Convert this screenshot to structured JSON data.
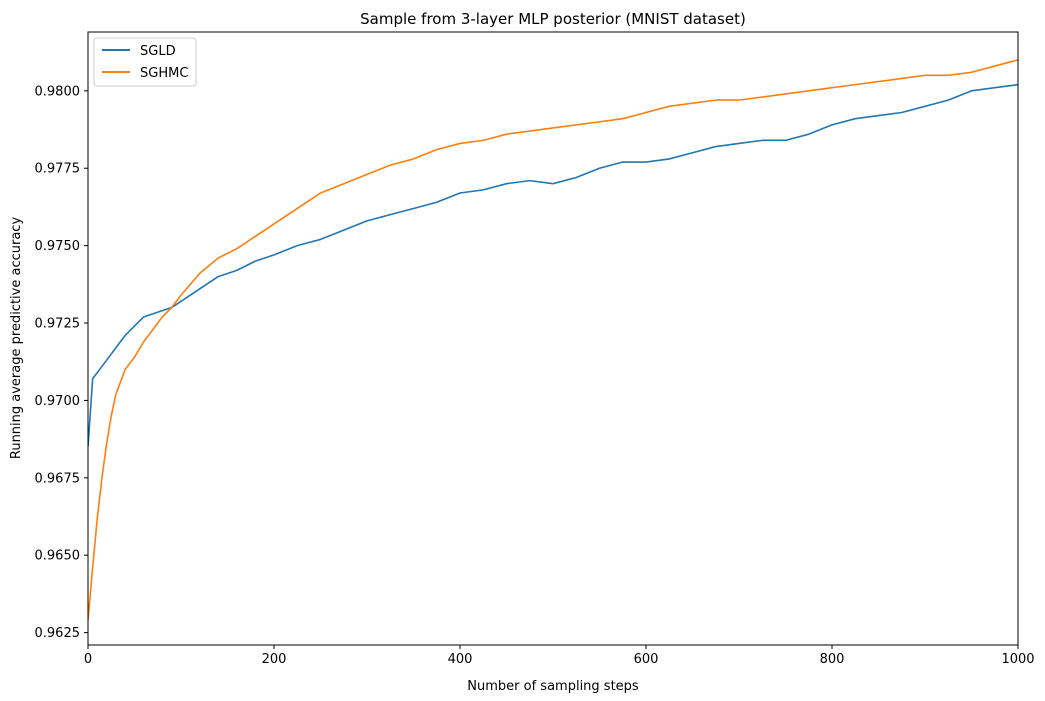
{
  "chart_data": {
    "type": "line",
    "title": "Sample from 3-layer MLP posterior (MNIST dataset)",
    "xlabel": "Number of sampling steps",
    "ylabel": "Running average predictive accuracy",
    "xlim": [
      0,
      1000
    ],
    "ylim": [
      0.9621,
      0.9819
    ],
    "xticks": [
      0,
      200,
      400,
      600,
      800,
      1000
    ],
    "xtick_labels": [
      "0",
      "200",
      "400",
      "600",
      "800",
      "1000"
    ],
    "yticks": [
      0.9625,
      0.965,
      0.9675,
      0.97,
      0.9725,
      0.975,
      0.9775,
      0.98
    ],
    "ytick_labels": [
      "0.9625",
      "0.9650",
      "0.9675",
      "0.9700",
      "0.9725",
      "0.9750",
      "0.9775",
      "0.9800"
    ],
    "grid": false,
    "legend_position": "top-left",
    "series": [
      {
        "name": "SGLD",
        "color": "#1f77b4",
        "x": [
          0,
          5,
          10,
          20,
          30,
          40,
          50,
          60,
          70,
          80,
          90,
          100,
          120,
          140,
          160,
          180,
          200,
          225,
          250,
          275,
          300,
          325,
          350,
          375,
          400,
          425,
          450,
          475,
          500,
          525,
          550,
          575,
          600,
          625,
          650,
          675,
          700,
          725,
          750,
          775,
          800,
          825,
          850,
          875,
          900,
          925,
          950,
          975,
          1000
        ],
        "y": [
          0.9685,
          0.9707,
          0.9709,
          0.9713,
          0.9717,
          0.9721,
          0.9724,
          0.9727,
          0.9728,
          0.9729,
          0.973,
          0.9732,
          0.9736,
          0.974,
          0.9742,
          0.9745,
          0.9747,
          0.975,
          0.9752,
          0.9755,
          0.9758,
          0.976,
          0.9762,
          0.9764,
          0.9767,
          0.9768,
          0.977,
          0.9771,
          0.977,
          0.9772,
          0.9775,
          0.9777,
          0.9777,
          0.9778,
          0.978,
          0.9782,
          0.9783,
          0.9784,
          0.9784,
          0.9786,
          0.9789,
          0.9791,
          0.9792,
          0.9793,
          0.9795,
          0.9797,
          0.98,
          0.9801,
          0.9802
        ]
      },
      {
        "name": "SGHMC",
        "color": "#ff7f0e",
        "x": [
          0,
          5,
          10,
          15,
          20,
          25,
          30,
          40,
          50,
          60,
          70,
          80,
          90,
          100,
          120,
          140,
          160,
          180,
          200,
          225,
          250,
          275,
          300,
          325,
          350,
          375,
          400,
          425,
          450,
          475,
          500,
          525,
          550,
          575,
          600,
          625,
          650,
          675,
          700,
          725,
          750,
          775,
          800,
          825,
          850,
          875,
          900,
          925,
          950,
          975,
          1000
        ],
        "y": [
          0.9629,
          0.9646,
          0.9662,
          0.9675,
          0.9686,
          0.9695,
          0.9702,
          0.971,
          0.9714,
          0.9719,
          0.9723,
          0.9727,
          0.973,
          0.9734,
          0.9741,
          0.9746,
          0.9749,
          0.9753,
          0.9757,
          0.9762,
          0.9767,
          0.977,
          0.9773,
          0.9776,
          0.9778,
          0.9781,
          0.9783,
          0.9784,
          0.9786,
          0.9787,
          0.9788,
          0.9789,
          0.979,
          0.9791,
          0.9793,
          0.9795,
          0.9796,
          0.9797,
          0.9797,
          0.9798,
          0.9799,
          0.98,
          0.9801,
          0.9802,
          0.9803,
          0.9804,
          0.9805,
          0.9805,
          0.9806,
          0.9808,
          0.981
        ]
      }
    ]
  }
}
